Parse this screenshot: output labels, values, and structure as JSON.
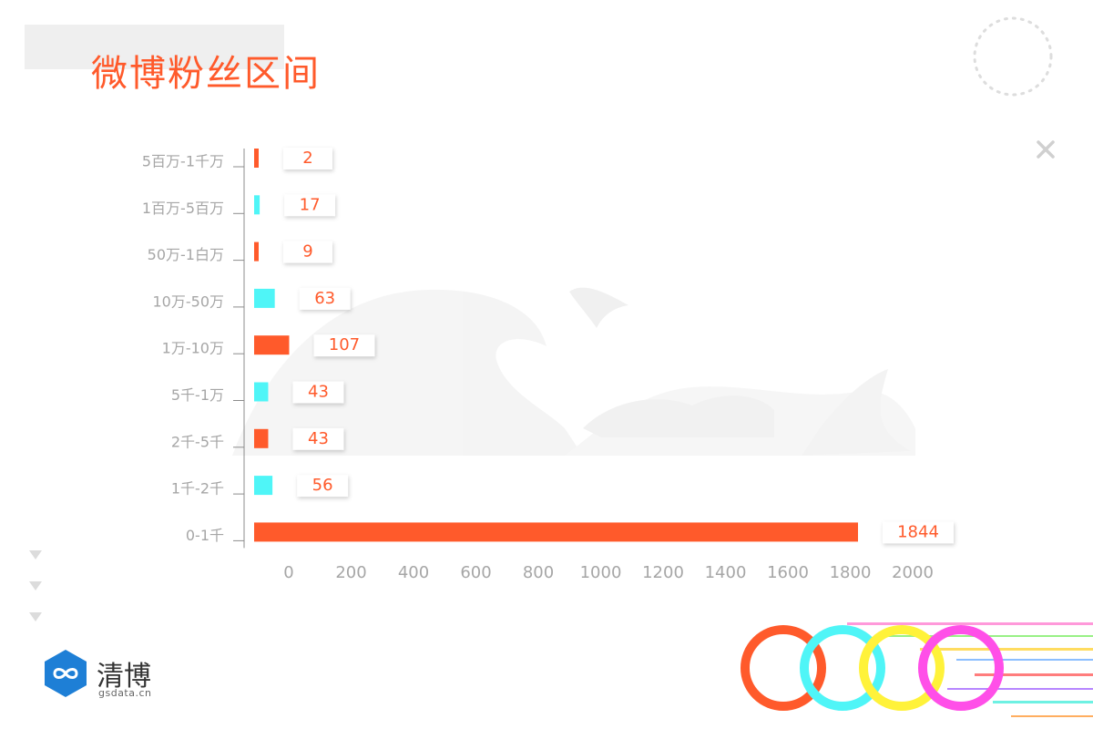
{
  "title": "微博粉丝区间",
  "logo": {
    "name": "清博",
    "domain": "gsdata.cn"
  },
  "colors": {
    "orange": "#ff5a2b",
    "cyan": "#4ff5f7",
    "tick": "#a6a6a6",
    "axis": "#8c8c8c"
  },
  "chart_data": {
    "type": "bar",
    "orientation": "horizontal",
    "title": "微博粉丝区间",
    "categories": [
      "5百万-1千万",
      "1百万-5百万",
      "50万-1白万",
      "10万-50万",
      "1万-10万",
      "5千-1万",
      "2千-5千",
      "1千-2千",
      "0-1千"
    ],
    "values": [
      2,
      17,
      9,
      63,
      107,
      43,
      43,
      56,
      1844
    ],
    "value_labels": [
      "2",
      "17",
      "9",
      "63",
      "107",
      "43",
      "43",
      "56",
      "1844"
    ],
    "bar_colors": [
      "orange",
      "cyan",
      "orange",
      "cyan",
      "orange",
      "cyan",
      "orange",
      "cyan",
      "orange"
    ],
    "xlim": [
      0,
      2000
    ],
    "xticks": [
      0,
      200,
      400,
      600,
      800,
      1000,
      1200,
      1400,
      1600,
      1800,
      2000
    ],
    "xlabel": "",
    "ylabel": "",
    "grid": false,
    "legend": "none"
  }
}
